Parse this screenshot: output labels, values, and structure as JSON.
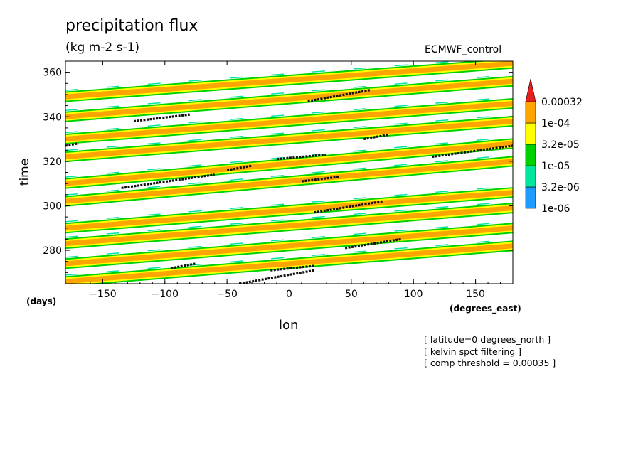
{
  "header": {
    "title": "precipitation flux",
    "units": "(kg m-2 s-1)",
    "dataset": "ECMWF_control"
  },
  "axes": {
    "xlabel": "lon",
    "ylabel": "time",
    "x_units": "(degrees_east)",
    "y_units": "(days)"
  },
  "notes": [
    "[ latitude=0 degrees_north ]",
    "[ kelvin spct filtering ]",
    "[ comp threshold = 0.00035 ]"
  ],
  "chart_data": {
    "type": "heatmap",
    "title": "precipitation flux",
    "subtitle": "(kg m-2 s-1)",
    "xlabel": "lon",
    "ylabel": "time",
    "xlim": [
      -180,
      180
    ],
    "ylim": [
      265,
      365
    ],
    "x_ticks": [
      -150,
      -100,
      -50,
      0,
      50,
      100,
      150
    ],
    "x_tick_labels": [
      "−150",
      "−100",
      "−50",
      "0",
      "50",
      "100",
      "150"
    ],
    "y_ticks": [
      280,
      300,
      320,
      340,
      360
    ],
    "y_tick_labels": [
      "280",
      "300",
      "320",
      "340",
      "360"
    ],
    "colorbar": {
      "levels": [
        "1e-06",
        "3.2e-06",
        "1e-05",
        "3.2e-05",
        "1e-04",
        "0.00032"
      ],
      "colors": [
        "#1e9bff",
        "#00e6a0",
        "#00d200",
        "#ffff00",
        "#ffa500",
        "#e61e1e"
      ]
    },
    "bands": [
      {
        "x0": -180,
        "t0": 266,
        "x1": 180,
        "t1": 282,
        "level": 4
      },
      {
        "x0": -180,
        "t0": 274,
        "x1": 180,
        "t1": 290,
        "level": 4
      },
      {
        "x0": -180,
        "t0": 283,
        "x1": 180,
        "t1": 299,
        "level": 4
      },
      {
        "x0": -180,
        "t0": 290,
        "x1": 180,
        "t1": 306,
        "level": 4
      },
      {
        "x0": -180,
        "t0": 302,
        "x1": 180,
        "t1": 320,
        "level": 4
      },
      {
        "x0": -180,
        "t0": 310,
        "x1": 180,
        "t1": 328,
        "level": 4
      },
      {
        "x0": -180,
        "t0": 322,
        "x1": 180,
        "t1": 338,
        "level": 4
      },
      {
        "x0": -180,
        "t0": 330,
        "x1": 180,
        "t1": 346,
        "level": 4
      },
      {
        "x0": -180,
        "t0": 340,
        "x1": 180,
        "t1": 356,
        "level": 4
      },
      {
        "x0": -180,
        "t0": 349,
        "x1": 180,
        "t1": 364,
        "level": 4
      }
    ],
    "cores": [
      {
        "x0": -40,
        "t0": 265,
        "x1": 20,
        "t1": 271
      },
      {
        "x0": -15,
        "t0": 271,
        "x1": 20,
        "t1": 273
      },
      {
        "x0": -95,
        "t0": 272,
        "x1": -75,
        "t1": 274
      },
      {
        "x0": 45,
        "t0": 281,
        "x1": 90,
        "t1": 285
      },
      {
        "x0": 20,
        "t0": 297,
        "x1": 75,
        "t1": 302
      },
      {
        "x0": -135,
        "t0": 308,
        "x1": -60,
        "t1": 314
      },
      {
        "x0": 10,
        "t0": 311,
        "x1": 40,
        "t1": 313
      },
      {
        "x0": -50,
        "t0": 316,
        "x1": -30,
        "t1": 318
      },
      {
        "x0": -10,
        "t0": 321,
        "x1": 30,
        "t1": 323
      },
      {
        "x0": 115,
        "t0": 322,
        "x1": 180,
        "t1": 327
      },
      {
        "x0": -180,
        "t0": 327,
        "x1": -170,
        "t1": 328
      },
      {
        "x0": 60,
        "t0": 330,
        "x1": 80,
        "t1": 332
      },
      {
        "x0": -125,
        "t0": 338,
        "x1": -80,
        "t1": 341
      },
      {
        "x0": 15,
        "t0": 347,
        "x1": 65,
        "t1": 352
      }
    ]
  }
}
